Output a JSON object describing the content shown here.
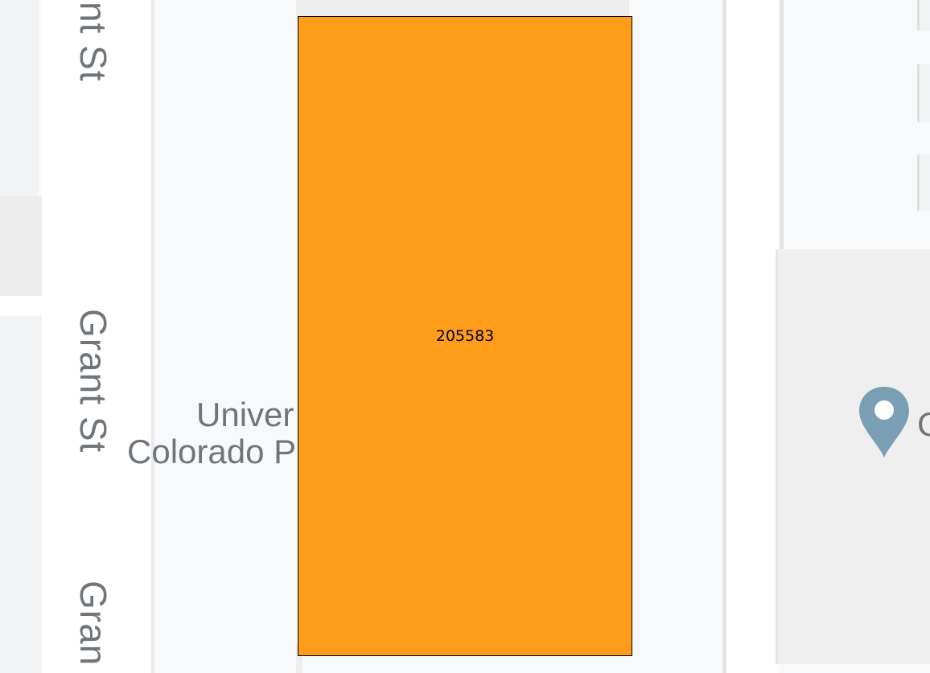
{
  "map": {
    "parcel": {
      "label": "205583",
      "fill_color": "#ff9c1a",
      "border_color": "#000000"
    },
    "streets": [
      {
        "name": "nt St"
      },
      {
        "name": "Grant St"
      },
      {
        "name": "Gran"
      }
    ],
    "poi": {
      "line1": "Univer",
      "line2": "Colorado P"
    },
    "pin": {
      "icon": "map-pin-icon",
      "color": "#7a9eb4",
      "label": "C"
    }
  }
}
